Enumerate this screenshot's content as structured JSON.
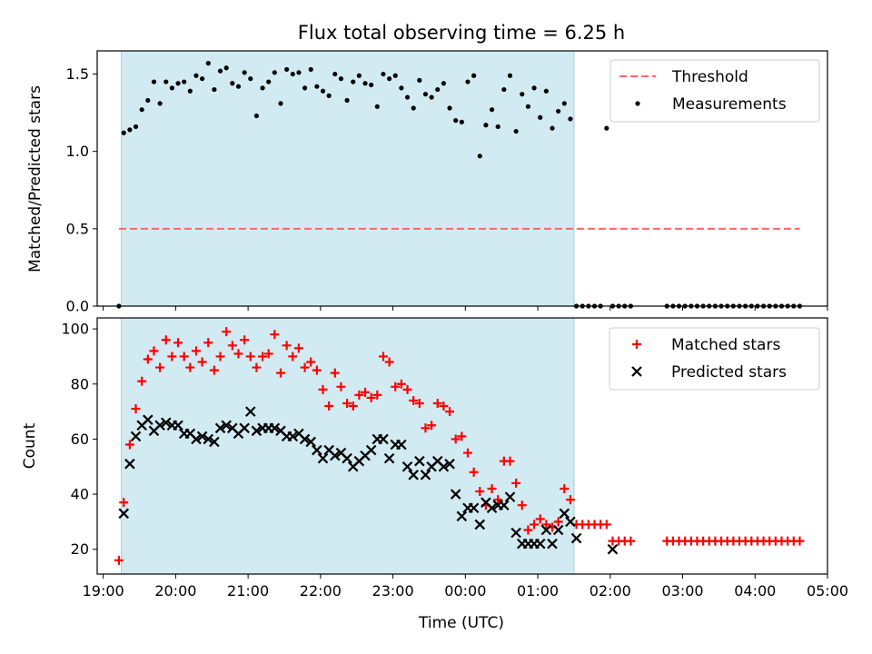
{
  "chart_data": [
    {
      "type": "scatter",
      "title": "Flux total observing time = 6.25 h",
      "ylabel": "Matched/Predicted stars",
      "xlabel": "",
      "ylim": [
        0,
        1.65
      ],
      "yticks": [
        0.0,
        0.5,
        1.0,
        1.5
      ],
      "ytick_labels": [
        "0.0",
        "0.5",
        "1.0",
        "1.5"
      ],
      "xlim": [
        "19:00",
        "05:00"
      ],
      "xtick_labels": [],
      "legend": {
        "placement": "upper-right",
        "entries": [
          "Threshold",
          "Measurements"
        ]
      },
      "shaded_interval": [
        "19:15",
        "21:30 +4h (01:30)"
      ],
      "shaded_color": "#add8e6",
      "threshold": {
        "name": "Threshold",
        "value": 0.5,
        "x": [
          "19:13",
          "04:37"
        ],
        "color": "#ff6666"
      },
      "series": [
        {
          "name": "Measurements",
          "color": "#000000",
          "x": [
            "19:13",
            "19:17",
            "19:22",
            "19:27",
            "19:32",
            "19:37",
            "19:42",
            "19:47",
            "19:52",
            "19:57",
            "20:02",
            "20:07",
            "20:12",
            "20:17",
            "20:22",
            "20:27",
            "20:32",
            "20:37",
            "20:42",
            "20:47",
            "20:52",
            "20:57",
            "21:02",
            "21:07",
            "21:12",
            "21:17",
            "21:22",
            "21:27",
            "21:32",
            "21:37",
            "21:42",
            "21:47",
            "21:52",
            "21:57",
            "22:02",
            "22:07",
            "22:12",
            "22:17",
            "22:22",
            "22:27",
            "22:32",
            "22:37",
            "22:42",
            "22:47",
            "22:52",
            "22:57",
            "23:02",
            "23:07",
            "23:12",
            "23:17",
            "23:22",
            "23:27",
            "23:32",
            "23:37",
            "23:42",
            "23:47",
            "23:52",
            "23:57",
            "00:02",
            "00:07",
            "00:12",
            "00:17",
            "00:22",
            "00:27",
            "00:32",
            "00:37",
            "00:42",
            "00:47",
            "00:52",
            "00:57",
            "01:02",
            "01:07",
            "01:12",
            "01:17",
            "01:22",
            "01:27",
            "01:32",
            "01:37",
            "01:42",
            "01:47",
            "01:52",
            "01:57",
            "02:02",
            "02:07",
            "02:12",
            "02:17",
            "02:47",
            "02:52",
            "02:57",
            "03:02",
            "03:07",
            "03:12",
            "03:17",
            "03:22",
            "03:27",
            "03:32",
            "03:37",
            "03:42",
            "03:47",
            "03:52",
            "03:57",
            "04:02",
            "04:07",
            "04:12",
            "04:17",
            "04:22",
            "04:27",
            "04:32",
            "04:37"
          ],
          "y": [
            0.0,
            1.12,
            1.14,
            1.16,
            1.27,
            1.33,
            1.45,
            1.31,
            1.45,
            1.41,
            1.44,
            1.45,
            1.39,
            1.49,
            1.47,
            1.57,
            1.4,
            1.52,
            1.54,
            1.44,
            1.42,
            1.51,
            1.47,
            1.23,
            1.41,
            1.45,
            1.51,
            1.31,
            1.53,
            1.5,
            1.51,
            1.41,
            1.53,
            1.42,
            1.39,
            1.36,
            1.5,
            1.47,
            1.33,
            1.45,
            1.49,
            1.44,
            1.43,
            1.29,
            1.5,
            1.47,
            1.49,
            1.41,
            1.35,
            1.28,
            1.46,
            1.37,
            1.35,
            1.4,
            1.44,
            1.28,
            1.2,
            1.19,
            1.45,
            1.49,
            0.97,
            1.17,
            1.27,
            1.16,
            1.4,
            1.49,
            1.13,
            1.37,
            1.29,
            1.41,
            1.22,
            1.39,
            1.15,
            1.26,
            1.31,
            1.21,
            0.0,
            0.0,
            0.0,
            0.0,
            0.0,
            1.15,
            0.0,
            0.0,
            0.0,
            0.0,
            0.0,
            0.0,
            0.0,
            0.0,
            0.0,
            0.0,
            0.0,
            0.0,
            0.0,
            0.0,
            0.0,
            0.0,
            0.0,
            0.0,
            0.0,
            0.0,
            0.0,
            0.0,
            0.0,
            0.0,
            0.0,
            0.0,
            0.0
          ]
        }
      ]
    },
    {
      "type": "scatter",
      "title": "",
      "ylabel": "Count",
      "xlabel": "Time (UTC)",
      "ylim": [
        11,
        104
      ],
      "yticks": [
        20,
        40,
        60,
        80,
        100
      ],
      "ytick_labels": [
        "20",
        "40",
        "60",
        "80",
        "100"
      ],
      "xlim": [
        "19:00",
        "05:00"
      ],
      "xtick_labels": [
        "19:00",
        "20:00",
        "21:00",
        "22:00",
        "23:00",
        "00:00",
        "01:00",
        "02:00",
        "03:00",
        "04:00",
        "05:00"
      ],
      "legend": {
        "placement": "upper-right",
        "entries": [
          "Matched stars",
          "Predicted stars"
        ]
      },
      "shaded_interval": [
        "19:15",
        "01:30"
      ],
      "shaded_color": "#add8e6",
      "series": [
        {
          "name": "Matched stars",
          "color": "#ff0000",
          "marker": "plus",
          "x": [
            "19:13",
            "19:17",
            "19:22",
            "19:27",
            "19:32",
            "19:37",
            "19:42",
            "19:47",
            "19:52",
            "19:57",
            "20:02",
            "20:07",
            "20:12",
            "20:17",
            "20:22",
            "20:27",
            "20:32",
            "20:37",
            "20:42",
            "20:47",
            "20:52",
            "20:57",
            "21:02",
            "21:07",
            "21:12",
            "21:17",
            "21:22",
            "21:27",
            "21:32",
            "21:37",
            "21:42",
            "21:47",
            "21:52",
            "21:57",
            "22:02",
            "22:07",
            "22:12",
            "22:17",
            "22:22",
            "22:27",
            "22:32",
            "22:37",
            "22:42",
            "22:47",
            "22:52",
            "22:57",
            "23:02",
            "23:07",
            "23:12",
            "23:17",
            "23:22",
            "23:27",
            "23:32",
            "23:37",
            "23:42",
            "23:47",
            "23:52",
            "23:57",
            "00:02",
            "00:07",
            "00:12",
            "00:17",
            "00:22",
            "00:27",
            "00:32",
            "00:37",
            "00:42",
            "00:47",
            "00:52",
            "00:57",
            "01:02",
            "01:07",
            "01:12",
            "01:17",
            "01:22",
            "01:27",
            "01:32",
            "01:37",
            "01:42",
            "01:47",
            "01:52",
            "01:57",
            "02:02",
            "02:07",
            "02:12",
            "02:17",
            "02:47",
            "02:52",
            "02:57",
            "03:02",
            "03:07",
            "03:12",
            "03:17",
            "03:22",
            "03:27",
            "03:32",
            "03:37",
            "03:42",
            "03:47",
            "03:52",
            "03:57",
            "04:02",
            "04:07",
            "04:12",
            "04:17",
            "04:22",
            "04:27",
            "04:32",
            "04:37"
          ],
          "y": [
            16,
            37,
            58,
            71,
            81,
            89,
            92,
            86,
            96,
            90,
            95,
            90,
            86,
            92,
            88,
            95,
            85,
            90,
            99,
            94,
            91,
            96,
            90,
            86,
            90,
            91,
            98,
            84,
            94,
            90,
            93,
            86,
            88,
            85,
            78,
            72,
            84,
            79,
            73,
            72,
            76,
            77,
            75,
            76,
            90,
            88,
            79,
            80,
            78,
            74,
            73,
            64,
            65,
            73,
            72,
            70,
            60,
            61,
            55,
            48,
            41,
            36,
            42,
            38,
            52,
            52,
            44,
            36,
            27,
            29,
            31,
            29,
            28,
            30,
            42,
            38,
            29,
            29,
            29,
            29,
            29,
            29,
            23,
            23,
            23,
            23,
            23,
            23,
            23,
            23,
            23,
            23,
            23,
            23,
            23,
            23,
            23,
            23,
            23,
            23,
            23,
            23,
            23,
            23,
            23,
            23,
            23,
            23,
            23
          ]
        },
        {
          "name": "Predicted stars",
          "color": "#000000",
          "marker": "x",
          "x": [
            "19:17",
            "19:22",
            "19:27",
            "19:32",
            "19:37",
            "19:42",
            "19:47",
            "19:52",
            "19:57",
            "20:02",
            "20:07",
            "20:12",
            "20:17",
            "20:22",
            "20:27",
            "20:32",
            "20:37",
            "20:42",
            "20:47",
            "20:52",
            "20:57",
            "21:02",
            "21:07",
            "21:12",
            "21:17",
            "21:22",
            "21:27",
            "21:32",
            "21:37",
            "21:42",
            "21:47",
            "21:52",
            "21:57",
            "22:02",
            "22:07",
            "22:12",
            "22:17",
            "22:22",
            "22:27",
            "22:32",
            "22:37",
            "22:42",
            "22:47",
            "22:52",
            "22:57",
            "23:02",
            "23:07",
            "23:12",
            "23:17",
            "23:22",
            "23:27",
            "23:32",
            "23:37",
            "23:42",
            "23:47",
            "23:52",
            "23:57",
            "00:02",
            "00:07",
            "00:12",
            "00:17",
            "00:22",
            "00:27",
            "00:32",
            "00:37",
            "00:42",
            "00:47",
            "00:52",
            "00:57",
            "01:02",
            "01:07",
            "01:12",
            "01:17",
            "01:22",
            "01:27",
            "01:32",
            "02:02"
          ],
          "y": [
            33,
            51,
            61,
            65,
            67,
            63,
            65,
            66,
            65,
            65,
            62,
            62,
            60,
            61,
            60,
            59,
            64,
            65,
            64,
            62,
            64,
            70,
            63,
            64,
            64,
            64,
            63,
            61,
            61,
            62,
            60,
            59,
            56,
            53,
            56,
            54,
            55,
            53,
            50,
            52,
            54,
            56,
            60,
            60,
            53,
            58,
            58,
            50,
            47,
            52,
            47,
            50,
            52,
            50,
            51,
            40,
            32,
            35,
            35,
            29,
            37,
            35,
            36,
            36,
            39,
            26,
            22,
            22,
            22,
            22,
            27,
            22,
            27,
            33,
            30,
            24,
            20
          ]
        }
      ]
    }
  ]
}
